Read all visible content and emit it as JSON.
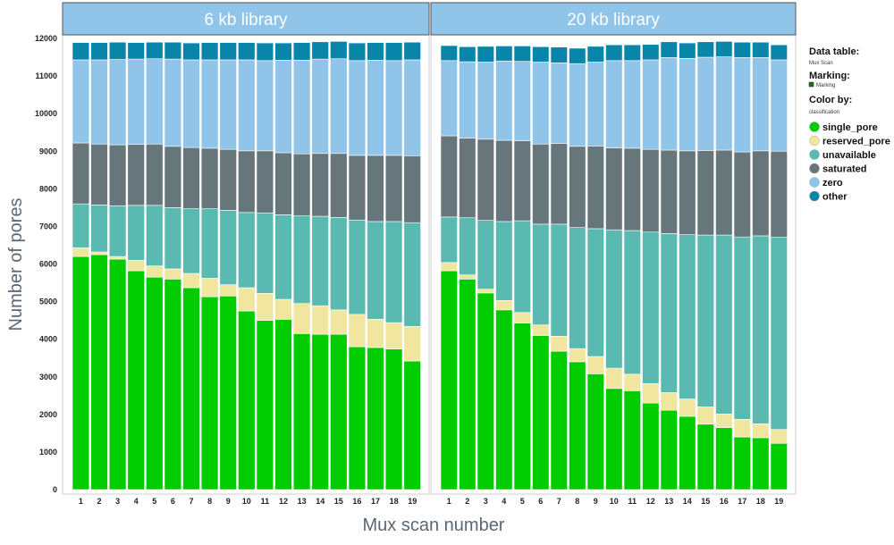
{
  "chart_data": {
    "type": "bar",
    "stacked": true,
    "ylabel": "Number of pores",
    "xlabel": "Mux scan number",
    "ylim": [
      0,
      12000
    ],
    "yticks": [
      0,
      1000,
      2000,
      3000,
      4000,
      5000,
      6000,
      7000,
      8000,
      9000,
      10000,
      11000,
      12000
    ],
    "grid": false,
    "legend_position": "right",
    "categories": [
      "1",
      "2",
      "3",
      "4",
      "5",
      "6",
      "7",
      "8",
      "9",
      "10",
      "11",
      "12",
      "13",
      "14",
      "15",
      "16",
      "17",
      "18",
      "19"
    ],
    "series_order": [
      "single_pore",
      "reserved_pore",
      "unavailable",
      "saturated",
      "zero",
      "other"
    ],
    "colors": {
      "single_pore": "#00cc00",
      "reserved_pore": "#f0e6a0",
      "unavailable": "#5ab9b0",
      "saturated": "#67767b",
      "zero": "#90c4e8",
      "other": "#0a85aa"
    },
    "panels": [
      {
        "title": "6 kb library",
        "series": [
          {
            "name": "single_pore",
            "values": [
              6200,
              6250,
              6130,
              5820,
              5650,
              5600,
              5370,
              5130,
              5150,
              4750,
              4500,
              4530,
              4150,
              4130,
              4130,
              3800,
              3780,
              3740,
              3420
            ]
          },
          {
            "name": "reserved_pore",
            "values": [
              230,
              70,
              70,
              280,
              300,
              270,
              380,
              490,
              300,
              620,
              720,
              530,
              800,
              760,
              650,
              860,
              750,
              700,
              920
            ]
          },
          {
            "name": "unavailable",
            "values": [
              1170,
              1250,
              1350,
              1460,
              1610,
              1630,
              1720,
              1850,
              1980,
              2000,
              2140,
              2250,
              2330,
              2380,
              2460,
              2510,
              2600,
              2690,
              2760
            ]
          },
          {
            "name": "saturated",
            "values": [
              1620,
              1620,
              1620,
              1620,
              1630,
              1630,
              1630,
              1610,
              1620,
              1640,
              1650,
              1650,
              1650,
              1670,
              1700,
              1720,
              1760,
              1760,
              1780
            ]
          },
          {
            "name": "zero",
            "values": [
              2210,
              2240,
              2270,
              2270,
              2270,
              2320,
              2330,
              2350,
              2380,
              2420,
              2400,
              2460,
              2490,
              2510,
              2520,
              2520,
              2530,
              2520,
              2550
            ]
          },
          {
            "name": "other",
            "values": [
              460,
              460,
              460,
              440,
              440,
              450,
              450,
              460,
              460,
              460,
              470,
              460,
              470,
              460,
              460,
              470,
              470,
              480,
              470
            ]
          }
        ]
      },
      {
        "title": "20 kb library",
        "series": [
          {
            "name": "single_pore",
            "values": [
              5820,
              5600,
              5230,
              4780,
              4430,
              4100,
              3680,
              3400,
              3080,
              2690,
              2630,
              2300,
              2110,
              1950,
              1740,
              1650,
              1400,
              1380,
              1230
            ]
          },
          {
            "name": "reserved_pore",
            "values": [
              220,
              110,
              100,
              250,
              280,
              280,
              400,
              350,
              460,
              540,
              440,
              520,
              470,
              460,
              460,
              360,
              470,
              370,
              370
            ]
          },
          {
            "name": "unavailable",
            "values": [
              1210,
              1520,
              1830,
              2100,
              2440,
              2680,
              2980,
              3220,
              3400,
              3680,
              3820,
              4030,
              4230,
              4370,
              4570,
              4760,
              4850,
              5000,
              5110
            ]
          },
          {
            "name": "saturated",
            "values": [
              2160,
              2120,
              2160,
              2160,
              2130,
              2130,
              2150,
              2160,
              2200,
              2180,
              2190,
              2200,
              2220,
              2230,
              2250,
              2260,
              2260,
              2260,
              2290
            ]
          },
          {
            "name": "zero",
            "values": [
              2000,
              2030,
              2050,
              2110,
              2110,
              2180,
              2140,
              2200,
              2230,
              2320,
              2330,
              2380,
              2460,
              2460,
              2480,
              2480,
              2510,
              2480,
              2430
            ]
          },
          {
            "name": "other",
            "values": [
              400,
              400,
              420,
              400,
              410,
              410,
              420,
              410,
              420,
              420,
              420,
              410,
              420,
              410,
              410,
              410,
              410,
              410,
              400
            ]
          }
        ]
      }
    ]
  },
  "legend": {
    "data_table_heading": "Data table:",
    "data_table_value": "Mux Scan",
    "marking_heading": "Marking:",
    "marking_value": "Marking",
    "color_by_heading": "Color by:",
    "color_by_value": "classification",
    "items": [
      "single_pore",
      "reserved_pore",
      "unavailable",
      "saturated",
      "zero",
      "other"
    ]
  },
  "marking_color": "#1a6e1a"
}
